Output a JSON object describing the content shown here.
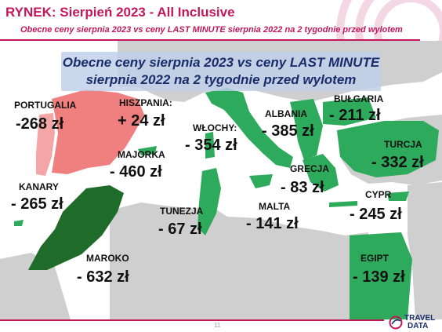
{
  "header": {
    "title": "RYNEK: Sierpień 2023 - All Inclusive",
    "subtitle": "Obecne ceny sierpnia  2023 vs ceny LAST MINUTE sierpnia 2022 na 2 tygodnie  przed wylotem"
  },
  "callout": {
    "line1": "Obecne ceny sierpnia 2023 vs ceny LAST MINUTE",
    "line2": "sierpnia 2022 na 2 tygodnie przed wylotem"
  },
  "destinations": [
    {
      "country": "PORTUGALIA",
      "price": "-268 zł"
    },
    {
      "country": "HISZPANIA:",
      "price": "+ 24 zł"
    },
    {
      "country": "MAJORKA",
      "price": "- 460 zł"
    },
    {
      "country": "WŁOCHY:",
      "price": "- 354 zł"
    },
    {
      "country": "ALBANIA",
      "price": "- 385 zł"
    },
    {
      "country": "BUŁGARIA",
      "price": "- 211 zł"
    },
    {
      "country": "TURCJA",
      "price": "- 332 zł"
    },
    {
      "country": "GRECJA",
      "price": "- 83 zł"
    },
    {
      "country": "CYPR",
      "price": "- 245 zł"
    },
    {
      "country": "KANARY",
      "price": "- 265 zł"
    },
    {
      "country": "TUNEZJA",
      "price": "- 67 zł"
    },
    {
      "country": "MALTA",
      "price": "- 141 zł"
    },
    {
      "country": "MAROKO",
      "price": "- 632 zł"
    },
    {
      "country": "EGIPT",
      "price": "- 139 zł"
    }
  ],
  "colors": {
    "brand": "#c2185b",
    "price_increase": "#f08080",
    "price_decrease": "#2eaa5c",
    "largest_decrease": "#1e6b2a",
    "land": "#cfcfcf",
    "callout_text": "#1a2d6b"
  },
  "footer": {
    "page_number": "11",
    "logo_word1": "TRAVEL",
    "logo_word2": "DATA"
  }
}
